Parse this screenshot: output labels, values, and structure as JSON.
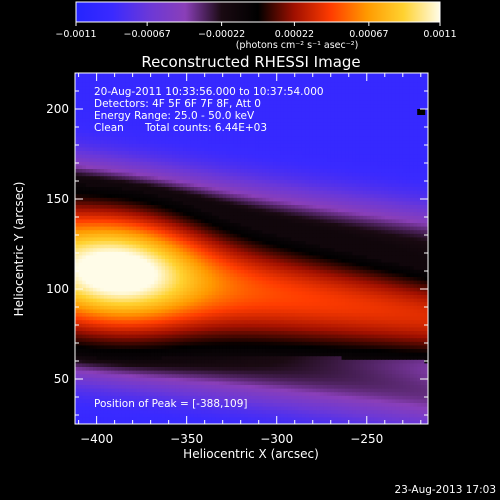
{
  "chart_data": {
    "type": "heatmap",
    "title": "Reconstructed RHESSI Image",
    "xlabel": "Heliocentric X (arcsec)",
    "ylabel": "Heliocentric Y (arcsec)",
    "xlim": [
      -412,
      -216
    ],
    "ylim": [
      25,
      220
    ],
    "xticks": [
      -400,
      -350,
      -300,
      -250
    ],
    "yticks": [
      50,
      100,
      150,
      200
    ],
    "colorbar": {
      "min": -0.0011,
      "max": 0.0011,
      "ticks": [
        "-0.0011",
        "-0.00067",
        "-0.00022",
        "0.00022",
        "0.00067",
        "0.0011"
      ],
      "units": "(photons cm⁻² s⁻¹ asec⁻²)",
      "stops": [
        "#2424ff",
        "#3a2aff",
        "#6b38d8",
        "#8a3fb8",
        "#1a0a12",
        "#000000",
        "#a01000",
        "#ff3c00",
        "#ff9a00",
        "#ffd230",
        "#fffce8"
      ]
    },
    "annotations": {
      "time_range": "20-Aug-2011 10:33:56.000 to 10:37:54.000",
      "detectors": "Detectors: 4F 5F 6F 7F 8F, Att 0",
      "energy": "Energy Range: 25.0 - 50.0 keV",
      "clean": "Clean",
      "counts": "Total counts: 6.44E+03",
      "peak": "Position of Peak = [-388,109]"
    },
    "peak": {
      "x": -388,
      "y": 109
    }
  },
  "footer": {
    "timestamp": "23-Aug-2013 17:03"
  }
}
